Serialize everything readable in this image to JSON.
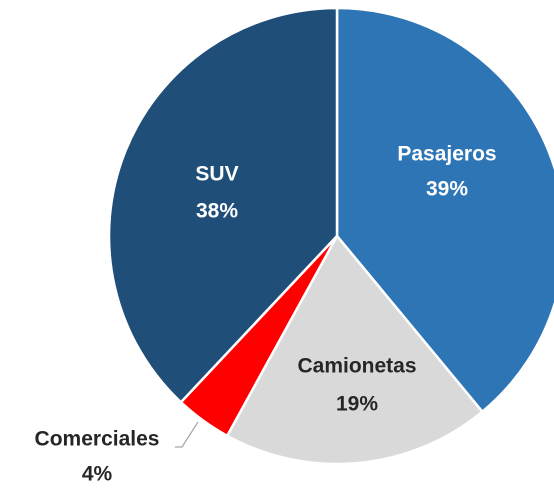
{
  "chart_data": {
    "type": "pie",
    "categories": [
      "Pasajeros",
      "Camionetas",
      "Comerciales",
      "SUV"
    ],
    "values": [
      39,
      19,
      4,
      38
    ],
    "value_labels": [
      "39%",
      "19%",
      "4%",
      "38%"
    ],
    "colors": [
      "#2e75b6",
      "#d9d9d9",
      "#ff0000",
      "#1f4e79"
    ]
  }
}
